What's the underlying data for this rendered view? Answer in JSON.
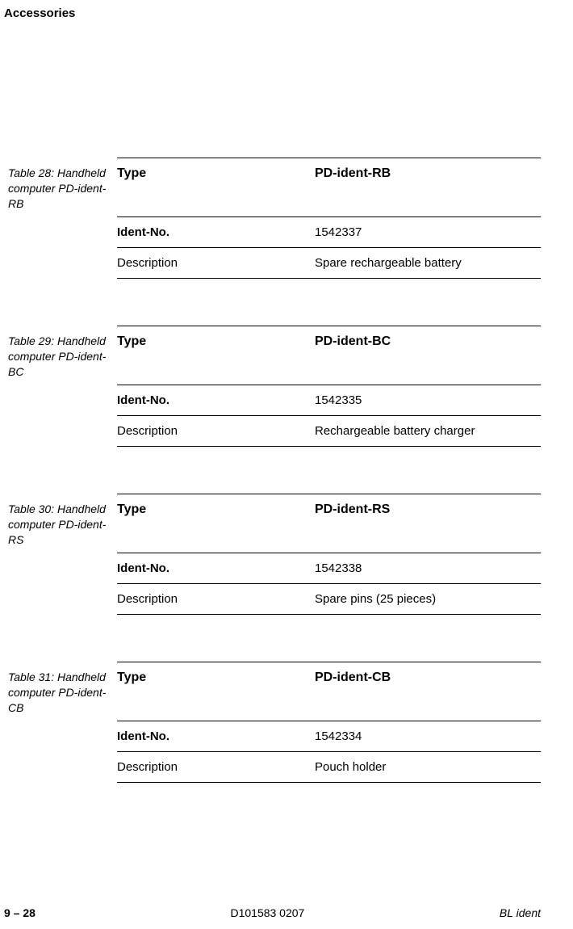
{
  "title": "Accessories",
  "tables": [
    {
      "caption": "Table 28: Handheld computer PD-ident-RB",
      "type_label": "Type",
      "type_value": "PD-ident-RB",
      "ident_label": "Ident-No.",
      "ident_value": "1542337",
      "desc_label": "Description",
      "desc_value": "Spare rechargeable battery"
    },
    {
      "caption": "Table 29: Handheld computer PD-ident-BC",
      "type_label": "Type",
      "type_value": "PD-ident-BC",
      "ident_label": "Ident-No.",
      "ident_value": "1542335",
      "desc_label": "Description",
      "desc_value": "Rechargeable battery charger"
    },
    {
      "caption": "Table 30: Handheld computer PD-ident-RS",
      "type_label": "Type",
      "type_value": "PD-ident-RS",
      "ident_label": "Ident-No.",
      "ident_value": "1542338",
      "desc_label": "Description",
      "desc_value": "Spare pins (25 pieces)"
    },
    {
      "caption": "Table 31: Handheld computer PD-ident-CB",
      "type_label": "Type",
      "type_value": "PD-ident-CB",
      "ident_label": "Ident-No.",
      "ident_value": "1542334",
      "desc_label": "Description",
      "desc_value": "Pouch holder"
    }
  ],
  "footer": {
    "left": "9 – 28",
    "center": "D101583 0207",
    "right": "BL ident"
  }
}
